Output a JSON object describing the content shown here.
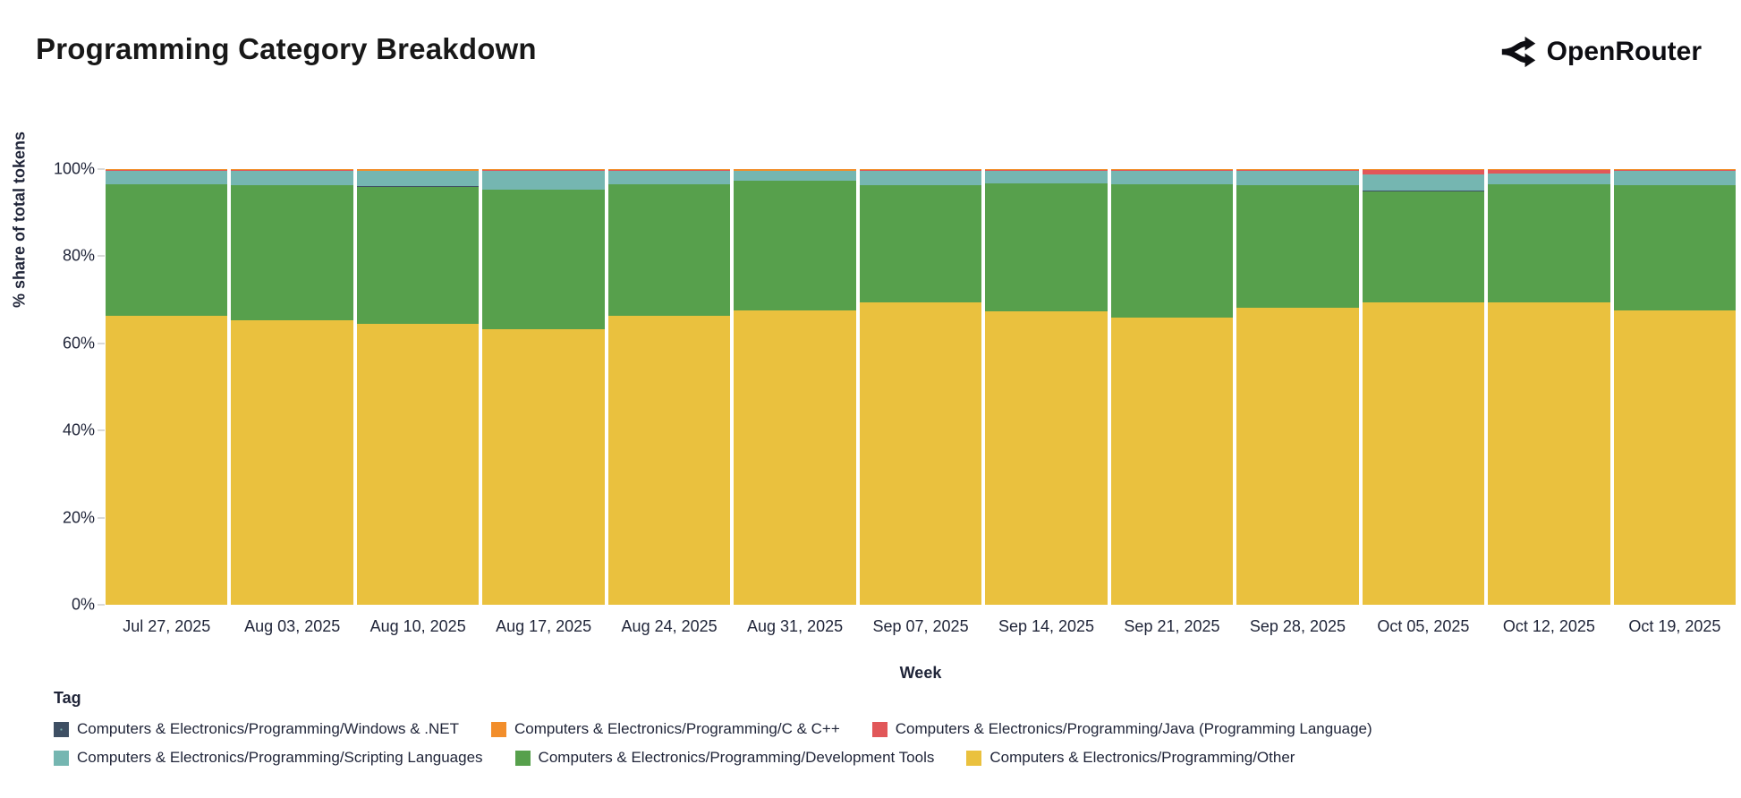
{
  "header": {
    "title": "Programming Category Breakdown",
    "brand": "OpenRouter"
  },
  "chart_data": {
    "type": "bar",
    "stacked": true,
    "title": "Programming Category Breakdown",
    "xlabel": "Week",
    "ylabel": "% share of total tokens",
    "ylim": [
      0,
      100
    ],
    "yticks": [
      "0%",
      "20%",
      "40%",
      "60%",
      "80%",
      "100%"
    ],
    "grid": false,
    "legend_title": "Tag",
    "legend_position": "bottom-left",
    "categories": [
      "Jul 27, 2025",
      "Aug 03, 2025",
      "Aug 10, 2025",
      "Aug 17, 2025",
      "Aug 24, 2025",
      "Aug 31, 2025",
      "Sep 07, 2025",
      "Sep 14, 2025",
      "Sep 21, 2025",
      "Sep 28, 2025",
      "Oct 05, 2025",
      "Oct 12, 2025",
      "Oct 19, 2025"
    ],
    "series": [
      {
        "name": "Computers & Electronics/Programming/Other",
        "color": "#eac13e",
        "values": [
          66.3,
          65.3,
          64.5,
          63.2,
          66.3,
          67.6,
          69.4,
          67.4,
          65.9,
          68.2,
          69.4,
          69.4,
          67.6
        ]
      },
      {
        "name": "Computers & Electronics/Programming/Development Tools",
        "color": "#57a04c",
        "values": [
          30.2,
          31.0,
          31.5,
          32.0,
          30.2,
          29.7,
          26.9,
          29.3,
          30.6,
          28.1,
          25.5,
          27.1,
          28.7
        ]
      },
      {
        "name": "Computers & Electronics/Programming/Windows & .NET",
        "color": "#3e4f63",
        "pattern": true,
        "values": [
          0.1,
          0.1,
          0.1,
          0.1,
          0.1,
          0.1,
          0.1,
          0.1,
          0.1,
          0.1,
          0.1,
          0.1,
          0.1
        ]
      },
      {
        "name": "Computers & Electronics/Programming/Scripting Languages",
        "color": "#75b6b1",
        "values": [
          3.0,
          3.2,
          3.5,
          4.3,
          3.0,
          2.2,
          3.2,
          2.8,
          3.0,
          3.2,
          3.8,
          2.4,
          3.2
        ]
      },
      {
        "name": "Computers & Electronics/Programming/Java (Programming Language)",
        "color": "#e15759",
        "values": [
          0.1,
          0.1,
          0.1,
          0.1,
          0.1,
          0.1,
          0.1,
          0.1,
          0.1,
          0.1,
          1.0,
          0.8,
          0.1
        ]
      },
      {
        "name": "Computers & Electronics/Programming/C & C++",
        "color": "#f28e2b",
        "values": [
          0.3,
          0.3,
          0.3,
          0.3,
          0.3,
          0.3,
          0.3,
          0.3,
          0.3,
          0.3,
          0.2,
          0.2,
          0.3
        ]
      }
    ],
    "legend_rows": [
      [
        2,
        5,
        4
      ],
      [
        3,
        1,
        0
      ]
    ]
  }
}
